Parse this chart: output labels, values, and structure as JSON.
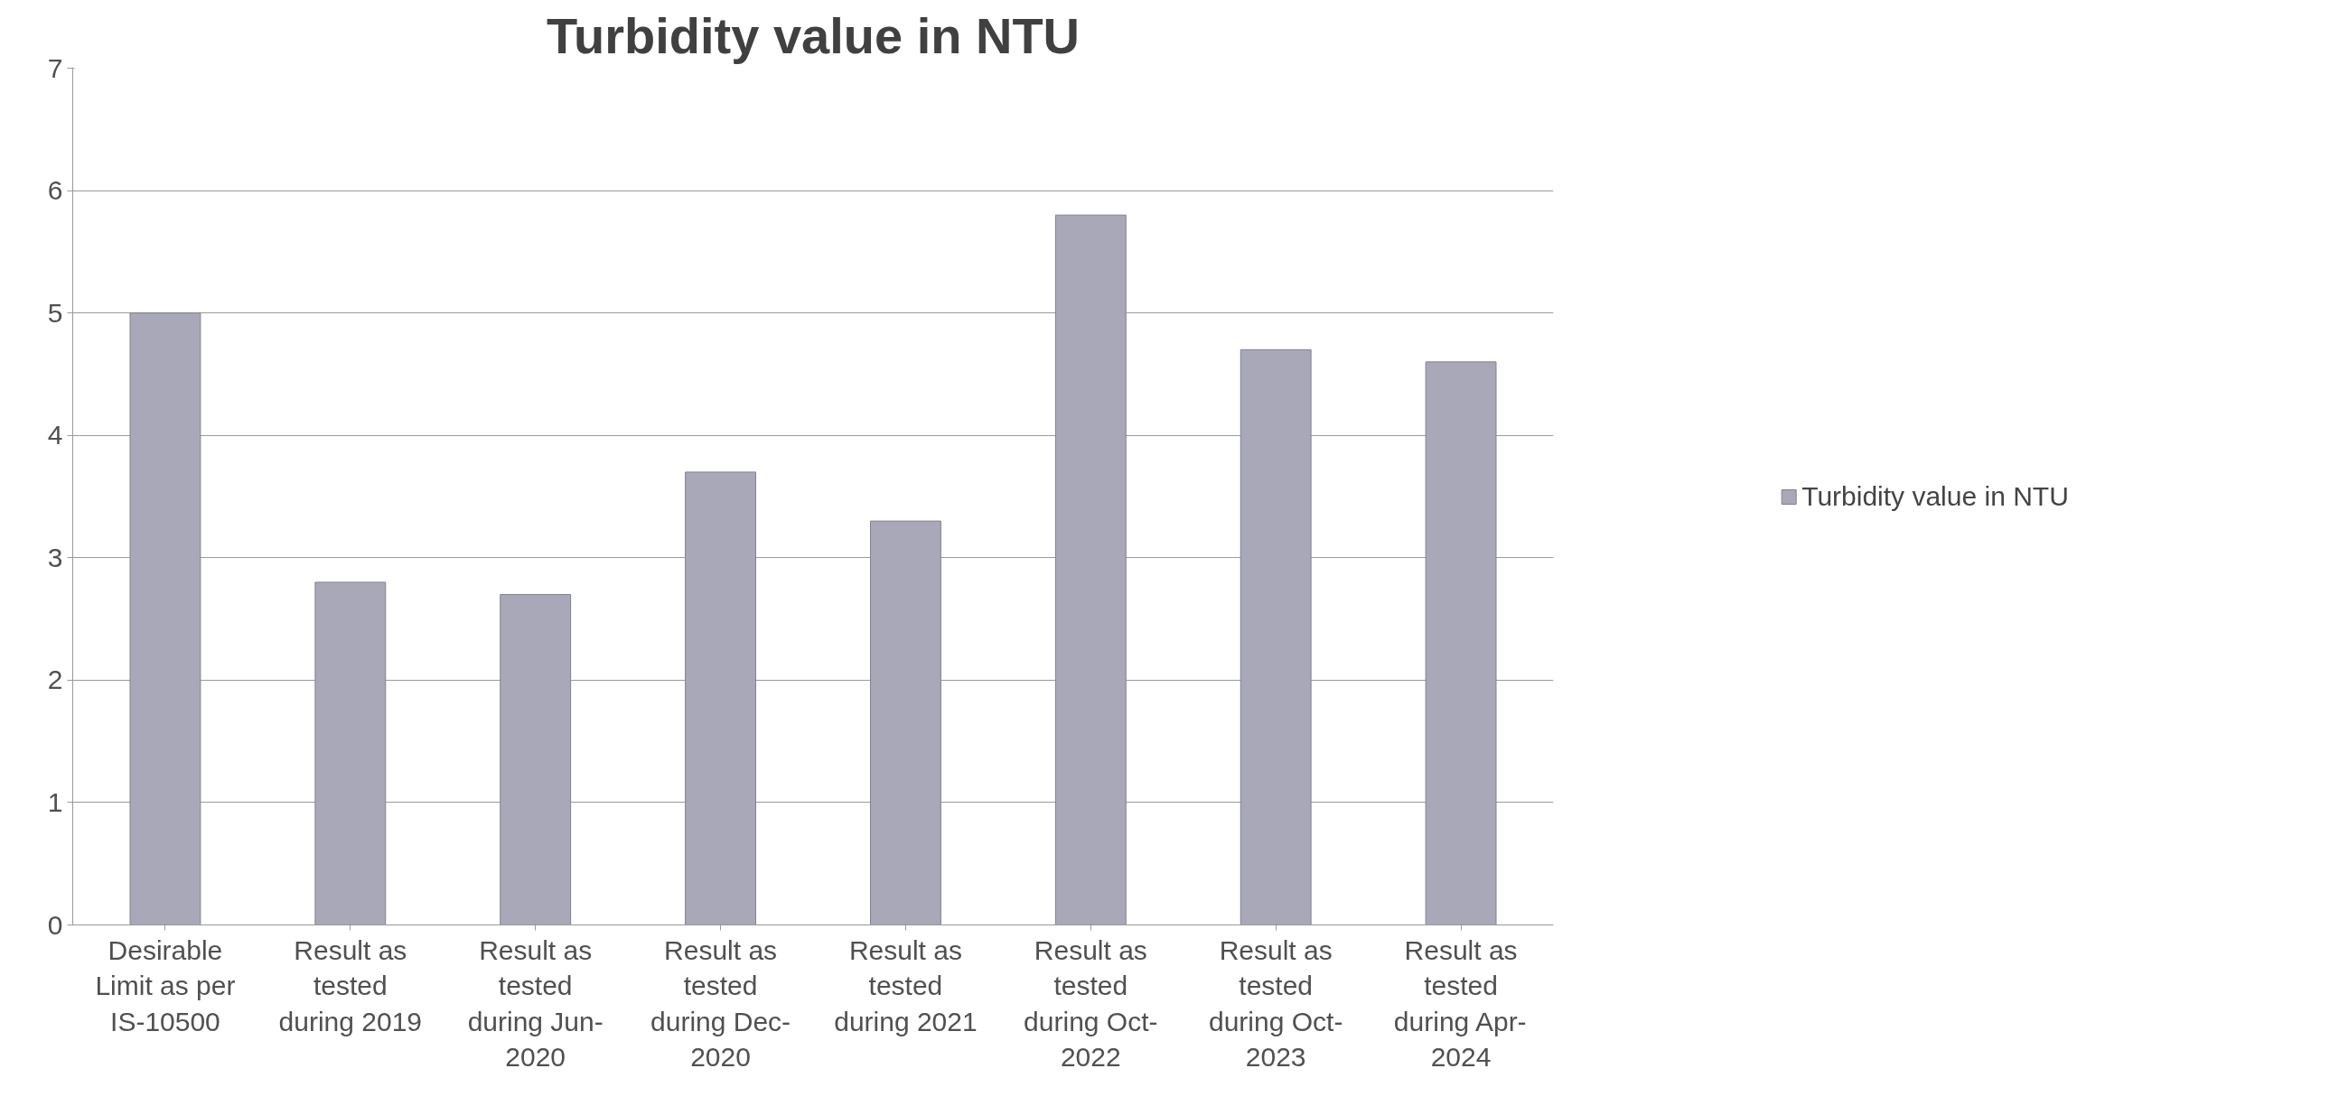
{
  "chart_data": {
    "type": "bar",
    "title": "Turbidity value in NTU",
    "categories": [
      "Desirable\nLimit as per\nIS-10500",
      "Result as\ntested\nduring 2019",
      "Result as\ntested\nduring Jun-\n2020",
      "Result as\ntested\nduring Dec-\n2020",
      "Result as\ntested\nduring 2021",
      "Result as\ntested\nduring Oct-\n2022",
      "Result as\ntested\nduring Oct-\n2023",
      "Result as\ntested\nduring Apr-\n2024"
    ],
    "series": [
      {
        "name": "Turbidity value in NTU",
        "color": "#a8a8b8",
        "values": [
          5.0,
          2.8,
          2.7,
          3.7,
          3.3,
          5.8,
          4.7,
          4.6
        ]
      }
    ],
    "ylim": [
      0,
      7
    ],
    "yticks": [
      0,
      1,
      2,
      3,
      4,
      5,
      6,
      7
    ],
    "grid": "y",
    "legend": "right"
  }
}
